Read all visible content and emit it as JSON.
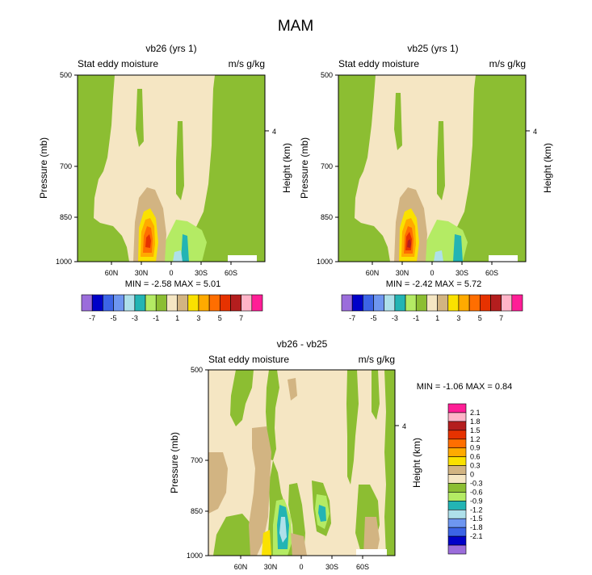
{
  "page": {
    "title": "MAM"
  },
  "palette": {
    "sign_colors": [
      "#9b6ddb",
      "#0000c8",
      "#3c64e6",
      "#6e96f0",
      "#aee0ea",
      "#23b4b4",
      "#b4eb64",
      "#8cbe32",
      "#f5e6c3",
      "#d2b482",
      "#fae100",
      "#ffaa00",
      "#ff6e00",
      "#e63200",
      "#b41e1e",
      "#ffb4c8",
      "#ff1e96"
    ],
    "background": "#f5e6c3",
    "neg_light": "#8cbe32",
    "neg_med": "#b4eb64",
    "neg_teal": "#23b4b4",
    "neg_cyan": "#aee0ea",
    "pos_tan": "#d2b482",
    "pos_yellow": "#fae100",
    "pos_orange": "#ffaa00",
    "pos_redorange": "#ff6e00",
    "pos_red": "#e63200",
    "pos_darkred": "#b41e1e"
  },
  "chart_data": [
    {
      "type": "heatmap",
      "id": "vb26",
      "title": "vb26 (yrs 1)",
      "left_label": "Stat eddy moisture",
      "right_label": "m/s g/kg",
      "ylabel": "Pressure (mb)",
      "y2label": "Height (km)",
      "yticks": [
        "500",
        "700",
        "850",
        "1000"
      ],
      "y2ticks": [
        "4"
      ],
      "xticks": [
        "60N",
        "30N",
        "0",
        "30S",
        "60S"
      ],
      "ylim": [
        1000,
        500
      ],
      "stats_label": "MIN =  -2.58   MAX =   5.01",
      "min": -2.58,
      "max": 5.01,
      "colorbar": {
        "ticks": [
          "-7",
          "-5",
          "-3",
          "-1",
          "1",
          "3",
          "5",
          "7"
        ],
        "levels": [
          -8,
          -7,
          -6,
          -5,
          -4,
          -3,
          -2,
          -1,
          0,
          1,
          2,
          3,
          4,
          5,
          6,
          7,
          8
        ]
      }
    },
    {
      "type": "heatmap",
      "id": "vb25",
      "title": "vb25 (yrs 1)",
      "left_label": "Stat eddy moisture",
      "right_label": "m/s g/kg",
      "ylabel": "Pressure (mb)",
      "y2label": "Height (km)",
      "yticks": [
        "500",
        "700",
        "850",
        "1000"
      ],
      "y2ticks": [
        "4"
      ],
      "xticks": [
        "60N",
        "30N",
        "0",
        "30S",
        "60S"
      ],
      "ylim": [
        1000,
        500
      ],
      "stats_label": "MIN =  -2.42   MAX =   5.72",
      "min": -2.42,
      "max": 5.72,
      "colorbar": {
        "ticks": [
          "-7",
          "-5",
          "-3",
          "-1",
          "1",
          "3",
          "5",
          "7"
        ],
        "levels": [
          -8,
          -7,
          -6,
          -5,
          -4,
          -3,
          -2,
          -1,
          0,
          1,
          2,
          3,
          4,
          5,
          6,
          7,
          8
        ]
      }
    },
    {
      "type": "heatmap",
      "id": "diff",
      "title": "vb26 - vb25",
      "left_label": "Stat eddy moisture",
      "right_label": "m/s g/kg",
      "ylabel": "Pressure (mb)",
      "y2label": "Height (km)",
      "yticks": [
        "500",
        "700",
        "850",
        "1000"
      ],
      "y2ticks": [
        "4"
      ],
      "xticks": [
        "60N",
        "30N",
        "0",
        "30S",
        "60S"
      ],
      "ylim": [
        1000,
        500
      ],
      "stats_label": "MIN =  -1.06   MAX =   0.84",
      "min": -1.06,
      "max": 0.84,
      "colorbar": {
        "labels": [
          "2.1",
          "1.8",
          "1.5",
          "1.2",
          "0.9",
          "0.6",
          "0.3",
          "0",
          "-0.3",
          "-0.6",
          "-0.9",
          "-1.2",
          "-1.5",
          "-1.8",
          "-2.1"
        ],
        "colors": [
          "#ff1e96",
          "#ffb4c8",
          "#b41e1e",
          "#e63200",
          "#ff6e00",
          "#ffaa00",
          "#fae100",
          "#d2b482",
          "#f5e6c3",
          "#8cbe32",
          "#b4eb64",
          "#23b4b4",
          "#aee0ea",
          "#6e96f0",
          "#3c64e6",
          "#0000c8",
          "#9b6ddb"
        ]
      }
    }
  ]
}
